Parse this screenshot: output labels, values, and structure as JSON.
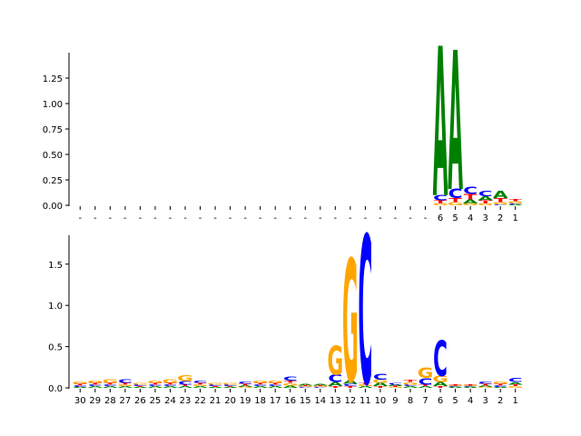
{
  "colors": {
    "A": "#008000",
    "C": "#0000ff",
    "G": "#ffa500",
    "T": "#ff0000",
    "axis": "#000000"
  },
  "chart_data": [
    {
      "type": "sequence-logo",
      "alphabet": [
        "A",
        "C",
        "G",
        "T"
      ],
      "ylim": [
        0,
        1.5
      ],
      "yticks": [
        "0.00",
        "0.25",
        "0.50",
        "0.75",
        "1.00",
        "1.25"
      ],
      "xtick_labels": [
        "-",
        "-",
        "-",
        "-",
        "-",
        "-",
        "-",
        "-",
        "-",
        "-",
        "-",
        "-",
        "-",
        "-",
        "-",
        "-",
        "-",
        "-",
        "-",
        "-",
        "-",
        "-",
        "-",
        "-",
        "6",
        "5",
        "4",
        "3",
        "2",
        "1"
      ],
      "columns": [
        null,
        null,
        null,
        null,
        null,
        null,
        null,
        null,
        null,
        null,
        null,
        null,
        null,
        null,
        null,
        null,
        null,
        null,
        null,
        null,
        null,
        null,
        null,
        null,
        {
          "A": 1.47,
          "C": 0.05,
          "G": 0.02,
          "T": 0.03
        },
        {
          "A": 1.37,
          "C": 0.09,
          "G": 0.03,
          "T": 0.04
        },
        {
          "A": 0.04,
          "C": 0.07,
          "G": 0.02,
          "T": 0.05
        },
        {
          "A": 0.04,
          "C": 0.05,
          "G": 0.02,
          "T": 0.03
        },
        {
          "A": 0.07,
          "C": 0.01,
          "G": 0.02,
          "T": 0.04
        },
        {
          "A": 0.01,
          "C": 0.01,
          "G": 0.02,
          "T": 0.02
        }
      ]
    },
    {
      "type": "sequence-logo",
      "alphabet": [
        "A",
        "C",
        "G",
        "T"
      ],
      "ylim": [
        0,
        1.85
      ],
      "yticks": [
        "0.0",
        "0.5",
        "1.0",
        "1.5"
      ],
      "xtick_labels": [
        "30",
        "29",
        "28",
        "27",
        "26",
        "25",
        "24",
        "23",
        "22",
        "21",
        "20",
        "19",
        "18",
        "17",
        "16",
        "15",
        "14",
        "13",
        "12",
        "11",
        "10",
        "9",
        "8",
        "7",
        "6",
        "5",
        "4",
        "3",
        "2",
        "1"
      ],
      "columns": [
        {
          "A": 0.01,
          "C": 0.02,
          "G": 0.03,
          "T": 0.02
        },
        {
          "A": 0.02,
          "C": 0.02,
          "G": 0.03,
          "T": 0.02
        },
        {
          "A": 0.02,
          "C": 0.02,
          "G": 0.04,
          "T": 0.02
        },
        {
          "A": 0.02,
          "C": 0.04,
          "G": 0.02,
          "T": 0.02
        },
        {
          "A": 0.01,
          "C": 0.02,
          "G": 0.02,
          "T": 0.01
        },
        {
          "A": 0.02,
          "C": 0.02,
          "G": 0.03,
          "T": 0.02
        },
        {
          "A": 0.02,
          "C": 0.02,
          "G": 0.04,
          "T": 0.02
        },
        {
          "A": 0.02,
          "C": 0.04,
          "G": 0.07,
          "T": 0.02
        },
        {
          "A": 0.02,
          "C": 0.03,
          "G": 0.02,
          "T": 0.02
        },
        {
          "A": 0.01,
          "C": 0.02,
          "G": 0.02,
          "T": 0.01
        },
        {
          "A": 0.01,
          "C": 0.02,
          "G": 0.02,
          "T": 0.01
        },
        {
          "A": 0.02,
          "C": 0.03,
          "G": 0.01,
          "T": 0.02
        },
        {
          "A": 0.02,
          "C": 0.02,
          "G": 0.03,
          "T": 0.02
        },
        {
          "A": 0.02,
          "C": 0.02,
          "G": 0.03,
          "T": 0.02
        },
        {
          "A": 0.03,
          "C": 0.05,
          "G": 0.03,
          "T": 0.03
        },
        {
          "A": 0.02,
          "C": 0.01,
          "G": 0.01,
          "T": 0.01
        },
        {
          "A": 0.02,
          "C": 0.01,
          "G": 0.01,
          "T": 0.01
        },
        {
          "A": 0.05,
          "C": 0.09,
          "G": 0.35,
          "T": 0.02
        },
        {
          "A": 0.04,
          "C": 0.03,
          "G": 1.48,
          "T": 0.02
        },
        {
          "A": 0.02,
          "C": 1.8,
          "G": 0.02,
          "T": 0.02
        },
        {
          "A": 0.04,
          "C": 0.07,
          "G": 0.04,
          "T": 0.02
        },
        {
          "A": 0.02,
          "C": 0.02,
          "G": 0.01,
          "T": 0.01
        },
        {
          "A": 0.02,
          "C": 0.02,
          "G": 0.03,
          "T": 0.03
        },
        {
          "A": 0.02,
          "C": 0.08,
          "G": 0.13,
          "T": 0.02
        },
        {
          "A": 0.05,
          "C": 0.43,
          "G": 0.08,
          "T": 0.02
        },
        {
          "A": 0.01,
          "C": 0.01,
          "G": 0.01,
          "T": 0.01
        },
        {
          "A": 0.01,
          "C": 0.01,
          "G": 0.01,
          "T": 0.01
        },
        {
          "A": 0.02,
          "C": 0.03,
          "G": 0.01,
          "T": 0.02
        },
        {
          "A": 0.01,
          "C": 0.02,
          "G": 0.03,
          "T": 0.02
        },
        {
          "A": 0.03,
          "C": 0.05,
          "G": 0.02,
          "T": 0.02
        }
      ]
    }
  ]
}
